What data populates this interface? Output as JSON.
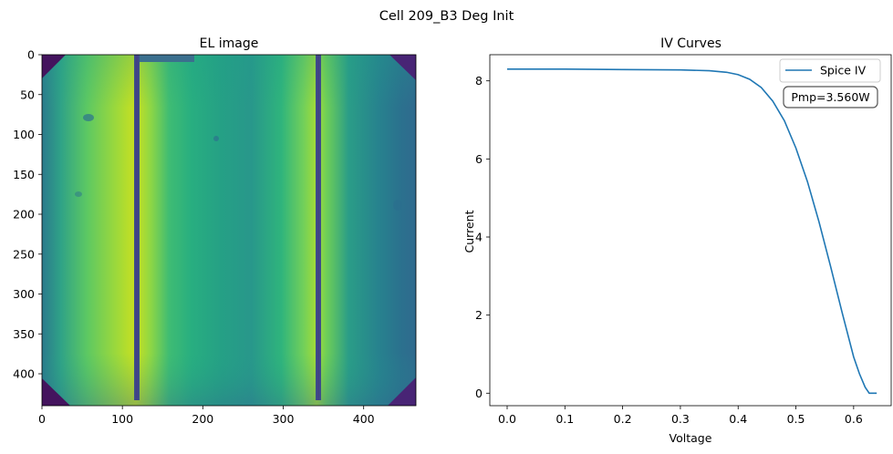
{
  "figure": {
    "title": "Cell 209_B3 Deg Init"
  },
  "colors": {
    "line": "#1f77b4",
    "frame": "#000000",
    "viridis_dark": "#44145e",
    "viridis_mid": "#2f8a8c",
    "viridis_bright": "#c6df2a"
  },
  "chart_data": [
    {
      "type": "heatmap",
      "title": "EL image",
      "xlabel": "",
      "ylabel": "",
      "colormap": "viridis",
      "xlim": [
        0,
        465
      ],
      "ylim": [
        440,
        0
      ],
      "xticks": [
        "0",
        "100",
        "200",
        "300",
        "400"
      ],
      "yticks": [
        "0",
        "50",
        "100",
        "150",
        "200",
        "250",
        "300",
        "350",
        "400"
      ],
      "busbars_x": [
        116,
        342
      ],
      "bright_columns_x": [
        110,
        320
      ]
    },
    {
      "type": "line",
      "title": "IV Curves",
      "xlabel": "Voltage",
      "ylabel": "Current",
      "xlim": [
        -0.03,
        0.665
      ],
      "ylim": [
        -0.32,
        8.67
      ],
      "xticks": [
        "0.0",
        "0.1",
        "0.2",
        "0.3",
        "0.4",
        "0.5",
        "0.6"
      ],
      "yticks": [
        "0",
        "2",
        "4",
        "6",
        "8"
      ],
      "legend_position": "top-right",
      "series": [
        {
          "name": "Spice IV",
          "x": [
            0.0,
            0.1,
            0.2,
            0.3,
            0.35,
            0.38,
            0.4,
            0.42,
            0.44,
            0.46,
            0.48,
            0.5,
            0.52,
            0.54,
            0.56,
            0.58,
            0.6,
            0.61,
            0.62,
            0.627,
            0.635,
            0.64
          ],
          "y": [
            8.3,
            8.3,
            8.29,
            8.28,
            8.26,
            8.22,
            8.16,
            8.04,
            7.83,
            7.48,
            6.98,
            6.28,
            5.42,
            4.39,
            3.25,
            2.07,
            0.93,
            0.5,
            0.15,
            0.0,
            0.0,
            0.0
          ]
        }
      ],
      "annotation": "Pmp=3.560W"
    }
  ]
}
